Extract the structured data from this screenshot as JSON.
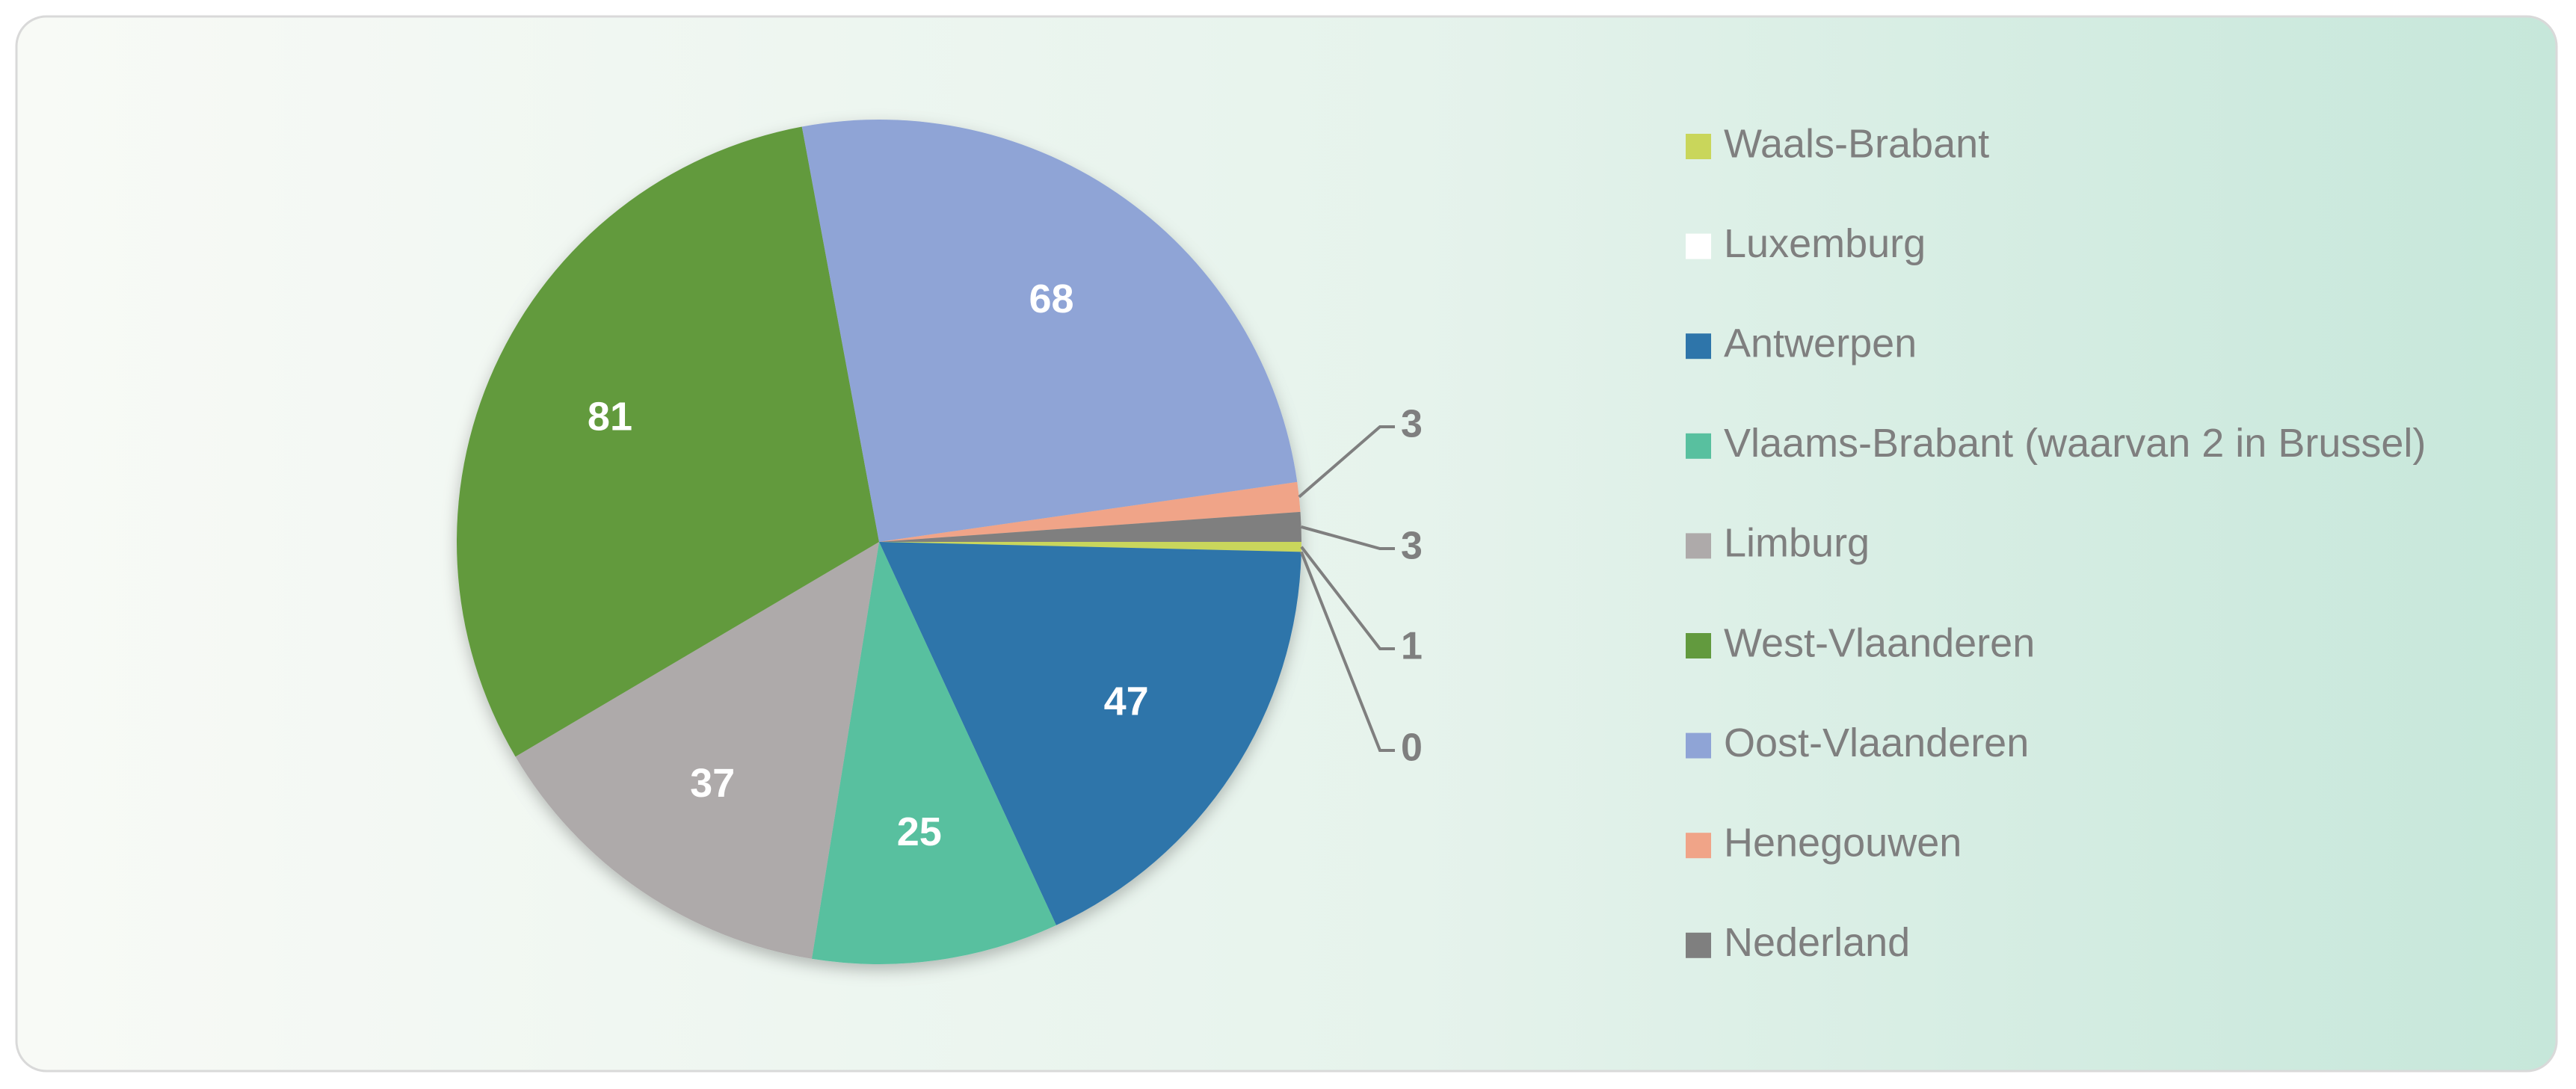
{
  "chart_data": {
    "type": "pie",
    "categories": [
      "Waals-Brabant",
      "Luxemburg",
      "Antwerpen",
      "Vlaams-Brabant (waarvan 2 in Brussel)",
      "Limburg",
      "West-Vlaanderen",
      "Oost-Vlaanderen",
      "Henegouwen",
      "Nederland"
    ],
    "values": [
      1,
      0,
      47,
      25,
      37,
      81,
      68,
      3,
      3
    ],
    "colors": [
      "#c9d65b",
      "#ffffff",
      "#2e75aa",
      "#58c09f",
      "#aeaaaa",
      "#629a3e",
      "#8fa4d6",
      "#f0a488",
      "#7f7f7f"
    ],
    "legend": "right"
  }
}
